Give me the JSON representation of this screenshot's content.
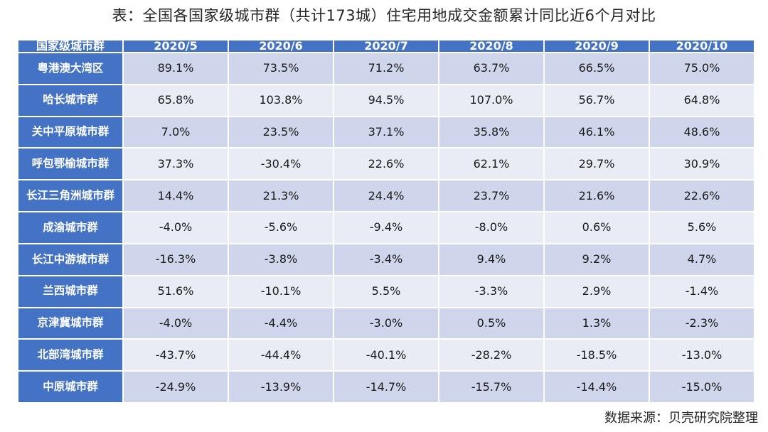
{
  "title": "表：全国各国家级城市群（共计173城）住宅用地成交金额累计同比近6个月对比",
  "source": "数据来源：贝壳研究院整理",
  "chart_data": {
    "type": "table",
    "header_label": "国家级城市群",
    "columns": [
      "2020/5",
      "2020/6",
      "2020/7",
      "2020/8",
      "2020/9",
      "2020/10"
    ],
    "rows": [
      {
        "name": "粤港澳大湾区",
        "values": [
          "89.1%",
          "73.5%",
          "71.2%",
          "63.7%",
          "66.5%",
          "75.0%"
        ]
      },
      {
        "name": "哈长城市群",
        "values": [
          "65.8%",
          "103.8%",
          "94.5%",
          "107.0%",
          "56.7%",
          "64.8%"
        ]
      },
      {
        "name": "关中平原城市群",
        "values": [
          "7.0%",
          "23.5%",
          "37.1%",
          "35.8%",
          "46.1%",
          "48.6%"
        ]
      },
      {
        "name": "呼包鄂榆城市群",
        "values": [
          "37.3%",
          "-30.4%",
          "22.6%",
          "62.1%",
          "29.7%",
          "30.9%"
        ]
      },
      {
        "name": "长江三角洲城市群",
        "values": [
          "14.4%",
          "21.3%",
          "24.4%",
          "23.7%",
          "21.6%",
          "22.6%"
        ]
      },
      {
        "name": "成渝城市群",
        "values": [
          "-4.0%",
          "-5.6%",
          "-9.4%",
          "-8.0%",
          "0.6%",
          "5.6%"
        ]
      },
      {
        "name": "长江中游城市群",
        "values": [
          "-16.3%",
          "-3.8%",
          "-3.4%",
          "9.4%",
          "9.2%",
          "4.7%"
        ]
      },
      {
        "name": "兰西城市群",
        "values": [
          "51.6%",
          "-10.1%",
          "5.5%",
          "-3.3%",
          "2.9%",
          "-1.4%"
        ]
      },
      {
        "name": "京津冀城市群",
        "values": [
          "-4.0%",
          "-4.4%",
          "-3.0%",
          "0.5%",
          "1.3%",
          "-2.3%"
        ]
      },
      {
        "name": "北部湾城市群",
        "values": [
          "-43.7%",
          "-44.4%",
          "-40.1%",
          "-28.2%",
          "-18.5%",
          "-13.0%"
        ]
      },
      {
        "name": "中原城市群",
        "values": [
          "-24.9%",
          "-13.9%",
          "-14.7%",
          "-15.7%",
          "-14.4%",
          "-15.0%"
        ]
      }
    ]
  },
  "colors": {
    "header_bg": "#4472c4",
    "row_odd_bg": "#cfd5ea",
    "row_even_bg": "#e9ebf5"
  }
}
